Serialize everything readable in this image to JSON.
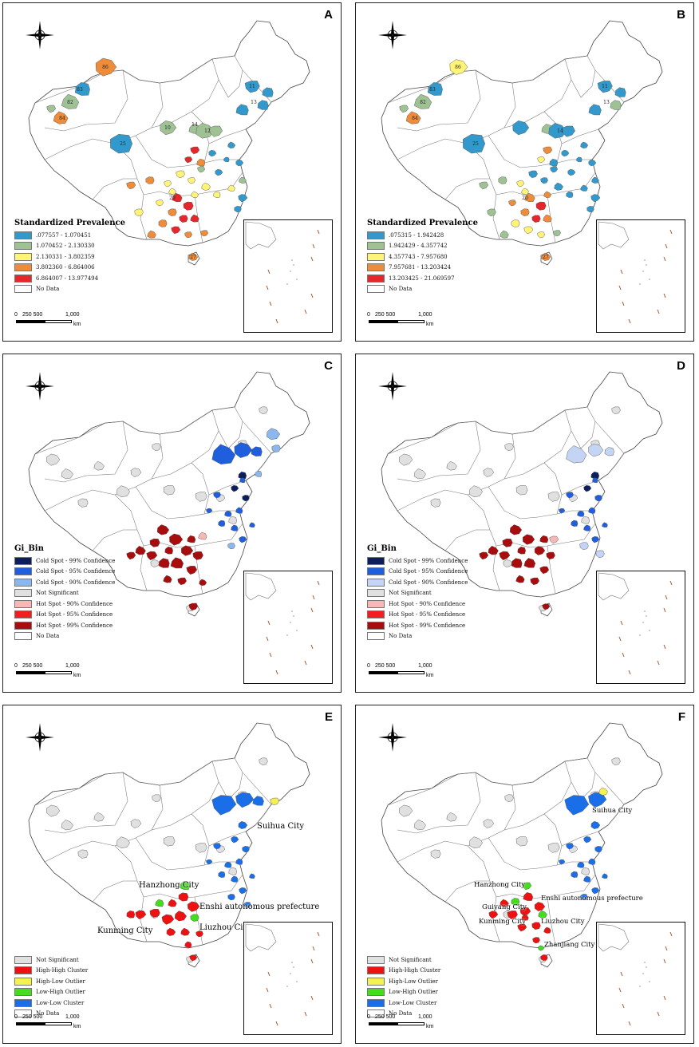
{
  "colors": {
    "prev": [
      "#3399cc",
      "#9fc294",
      "#fff475",
      "#ef8c3a",
      "#e5262a"
    ],
    "gi": [
      "#0c1f5c",
      "#1f5fdd",
      "#8cb6ee",
      "#e0e0e0",
      "#f6b7b7",
      "#f01e1e",
      "#a90c0c"
    ],
    "gi_d": [
      "#0c1f5c",
      "#1f5fdd",
      "#c3d4f5",
      "#e0e0e0",
      "#f6b7b7",
      "#f01e1e",
      "#a90c0c"
    ],
    "lisa": [
      "#e0e0e0",
      "#ee1111",
      "#f6f152",
      "#44dd1e",
      "#1a6fe8"
    ],
    "nodata": "#ffffff"
  },
  "panels": {
    "A": {
      "label": "A",
      "legend_title": "Standardized Prevalence",
      "legend": [
        ".077557 - 1.070451",
        "1.070452 - 2.130330",
        "2.130331 - 3.802359",
        "3.802360 - 6.864006",
        "6.864007 - 13.977494",
        "No Data"
      ]
    },
    "B": {
      "label": "B",
      "legend_title": "Standardized Prevalence",
      "legend": [
        ".075315 - 1.942428",
        "1.942429 - 4.357742",
        "4.357743 - 7.957680",
        "7.957681 - 13.203424",
        "13.203425 - 21.069597",
        "No Data"
      ]
    },
    "C": {
      "label": "C",
      "legend_title": "Gi_Bin",
      "legend": [
        "Cold Spot - 99% Confidence",
        "Cold Spot - 95% Confidence",
        "Cold Spot - 90% Confidence",
        "Not Significant",
        "Hot Spot - 90% Confidence",
        "Hot Spot - 95% Confidence",
        "Hot Spot - 99% Confidence",
        "No Data"
      ]
    },
    "D": {
      "label": "D",
      "legend_title": "Gi_Bin",
      "legend": [
        "Cold Spot - 99% Confidence",
        "Cold Spot - 95% Confidence",
        "Cold Spot - 90% Confidence",
        "Not Significant",
        "Hot Spot - 90% Confidence",
        "Hot Spot - 95% Confidence",
        "Hot Spot - 99% Confidence",
        "No Data"
      ]
    },
    "E": {
      "label": "E",
      "legend": [
        "Not Significant",
        "High-High Cluster",
        "High-Low Outlier",
        "Low-High Outlier",
        "Low-Low Cluster",
        "No Data"
      ],
      "cities": [
        "Suihua City",
        "Hanzhong City",
        "Enshi autonomous prefecture",
        "Kunming City",
        "Liuzhou City"
      ]
    },
    "F": {
      "label": "F",
      "legend": [
        "Not Significant",
        "High-High Cluster",
        "High-Low Outlier",
        "Low-High Outlier",
        "Low-Low Cluster",
        "No Data"
      ],
      "cities": [
        "Suihua City",
        "Hanzhong City",
        "Enshi autonomous prefecture",
        "Guiyang City",
        "Kunming City",
        "Liuzhou City",
        "Zhanjiang City"
      ]
    }
  },
  "scale": {
    "ticks": [
      "0",
      "250",
      "500",
      "1,000"
    ],
    "unit": "km"
  },
  "map_labels": {
    "A": [
      "86",
      "83",
      "82",
      "84",
      "25",
      "10",
      "12",
      "14",
      "11",
      "13",
      "20",
      "27"
    ],
    "B": [
      "86",
      "83",
      "82",
      "84",
      "25",
      "14",
      "11",
      "13",
      "20",
      "27"
    ]
  }
}
